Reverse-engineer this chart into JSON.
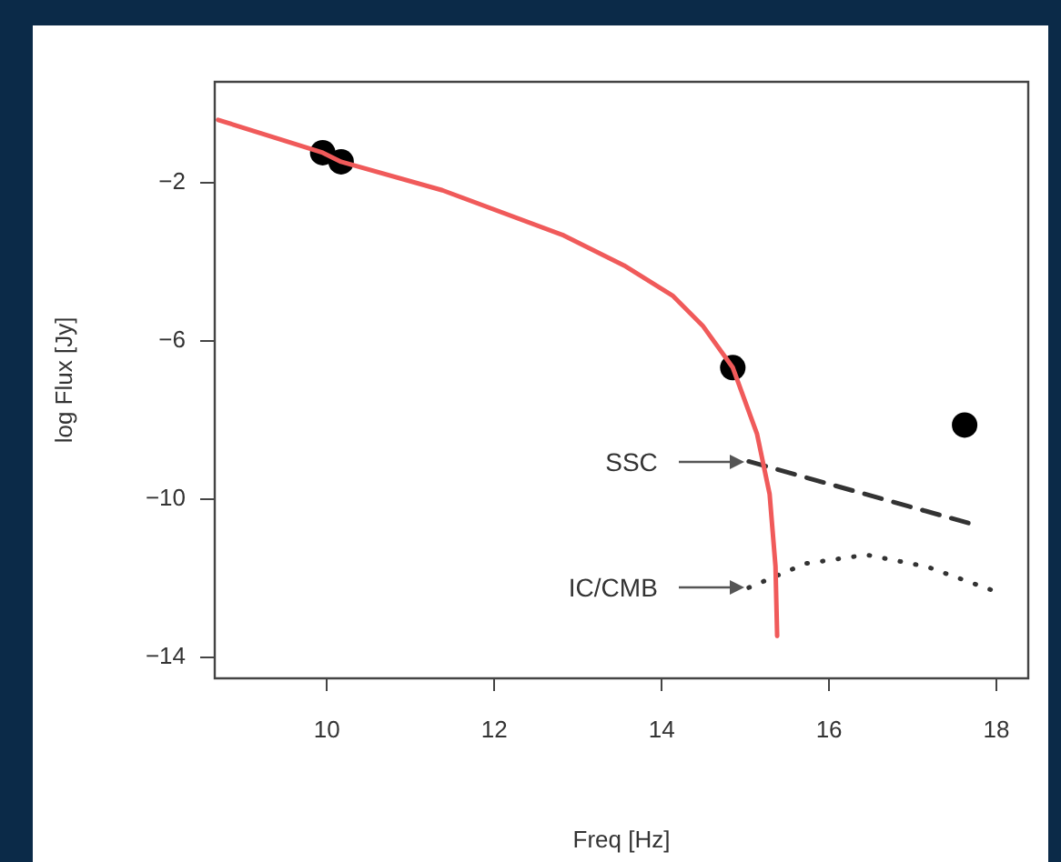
{
  "chart_data": {
    "type": "line",
    "xlabel": "Freq [Hz]",
    "ylabel": "log Flux [Jy]",
    "xlim": [
      8.66,
      18.38
    ],
    "xticks": [
      10,
      12,
      14,
      16,
      18
    ],
    "ylim": [
      -14.53,
      0.54
    ],
    "yticks": [
      -2,
      -6,
      -10,
      -14
    ],
    "grid": false,
    "legend": false,
    "annotations": [
      {
        "text": "SSC",
        "x": 15.04,
        "y": -9.05
      },
      {
        "text": "IC/CMB",
        "x": 15.04,
        "y": -12.24
      }
    ],
    "series": [
      {
        "color": "#f05a5a",
        "line_style": "solid",
        "marker": "none",
        "x": [
          8.7,
          9.95,
          10.17,
          11.38,
          12.83,
          13.55,
          14.13,
          14.49,
          14.85,
          15.14,
          15.29,
          15.36,
          15.38
        ],
        "values": [
          -0.42,
          -1.25,
          -1.48,
          -2.2,
          -3.34,
          -4.1,
          -4.86,
          -5.62,
          -6.68,
          -8.36,
          -9.88,
          -11.7,
          -13.46
        ]
      },
      {
        "type": "scatter",
        "color": "#000000",
        "marker": "circle",
        "x": [
          9.95,
          10.17,
          14.85,
          17.62
        ],
        "values": [
          -1.25,
          -1.48,
          -6.68,
          -8.13
        ]
      },
      {
        "color": "#333333",
        "line_style": "dashed",
        "marker": "none",
        "x": [
          15.04,
          17.67
        ],
        "values": [
          -9.05,
          -10.61
        ]
      },
      {
        "color": "#333333",
        "line_style": "dotted",
        "marker": "none",
        "x": [
          15.04,
          15.72,
          16.45,
          17.17,
          17.93
        ],
        "values": [
          -12.24,
          -11.63,
          -11.41,
          -11.71,
          -12.29
        ]
      }
    ]
  }
}
